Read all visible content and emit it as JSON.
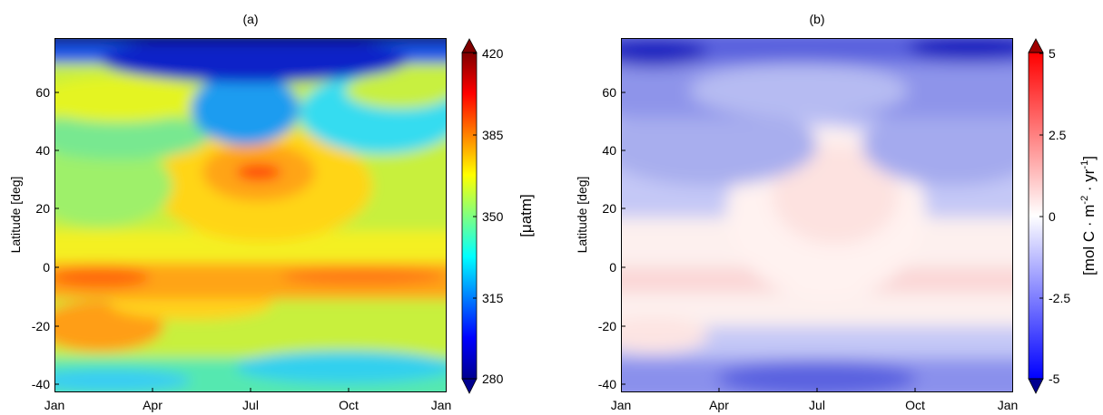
{
  "chart_data": [
    {
      "type": "heatmap",
      "title": "(a)",
      "xlabel": "",
      "ylabel": "Latitude [deg]",
      "x_ticks": [
        "Jan",
        "Apr",
        "Jul",
        "Oct",
        "Jan"
      ],
      "y_ticks": [
        "60",
        "40",
        "20",
        "0",
        "-20",
        "-40"
      ],
      "ylim": [
        -43,
        79
      ],
      "colorbar": {
        "label": "[μatm]",
        "ticks": [
          "420",
          "385",
          "350",
          "315",
          "280"
        ],
        "range": [
          280,
          420
        ],
        "colormap": "jet"
      },
      "fields_approx": [
        {
          "lat": 75,
          "month": "all",
          "value": 290
        },
        {
          "lat": 60,
          "month": "Jan",
          "value": 370
        },
        {
          "lat": 60,
          "month": "Jul",
          "value": 330
        },
        {
          "lat": 32,
          "month": "Jul",
          "value": 395
        },
        {
          "lat": 20,
          "month": "Jan",
          "value": 345
        },
        {
          "lat": -3,
          "month": "Feb",
          "value": 392
        },
        {
          "lat": -3,
          "month": "Jul",
          "value": 385
        },
        {
          "lat": -25,
          "month": "Feb",
          "value": 380
        },
        {
          "lat": -38,
          "month": "Oct",
          "value": 330
        }
      ]
    },
    {
      "type": "heatmap",
      "title": "(b)",
      "xlabel": "",
      "ylabel": "Latitude [deg]",
      "x_ticks": [
        "Jan",
        "Apr",
        "Jul",
        "Oct",
        "Jan"
      ],
      "y_ticks": [
        "60",
        "40",
        "20",
        "0",
        "-20",
        "-40"
      ],
      "ylim": [
        -43,
        79
      ],
      "colorbar": {
        "label_main": "[mol C · m",
        "label_exp1": "-2",
        "label_mid": " · yr",
        "label_exp2": "-1",
        "label_end": "]",
        "ticks": [
          "5",
          "2.5",
          "0",
          "-2.5",
          "-5"
        ],
        "range": [
          -5,
          5
        ],
        "colormap": "blue-white-red"
      },
      "fields_approx": [
        {
          "lat": 75,
          "month": "Jan",
          "value": -4.5
        },
        {
          "lat": 55,
          "month": "Jul",
          "value": -2.5
        },
        {
          "lat": 35,
          "month": "Jul",
          "value": 0.6
        },
        {
          "lat": -5,
          "month": "Jul",
          "value": 0.8
        },
        {
          "lat": -38,
          "month": "Jul",
          "value": -2.5
        }
      ]
    }
  ]
}
